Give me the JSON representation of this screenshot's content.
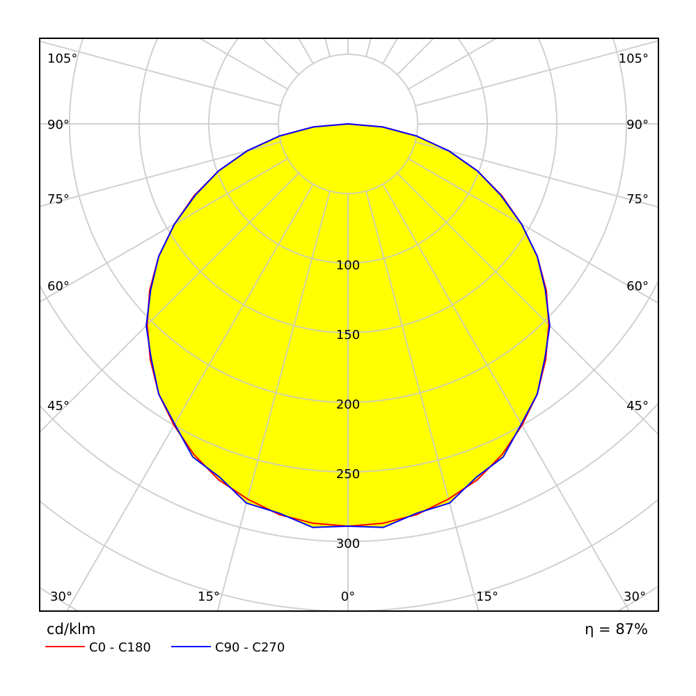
{
  "chart_data": {
    "type": "polar",
    "unit_label": "cd/klm",
    "efficiency_label": "η = 87%",
    "radial_ticks": [
      50,
      100,
      150,
      200,
      250,
      300,
      350,
      400
    ],
    "radial_tick_labels": [
      "100",
      "150",
      "200",
      "250",
      "300"
    ],
    "angle_step_deg": 15,
    "angle_labels_left": [
      "105°",
      "90°",
      "75°",
      "60°",
      "45°"
    ],
    "angle_labels_bottom": [
      "30°",
      "15°",
      "0°",
      "15°",
      "30°"
    ],
    "angle_labels_right": [
      "105°",
      "90°",
      "75°",
      "60°",
      "45°"
    ],
    "grid": true,
    "legend_position": "bottom-left",
    "fill_color": "#ffff00",
    "angles_deg": [
      0,
      5,
      10,
      15,
      20,
      25,
      30,
      35,
      40,
      45,
      50,
      55,
      60,
      65,
      70,
      75,
      80,
      85,
      90
    ],
    "series": [
      {
        "name": "C0 - C180",
        "color": "#ff0000",
        "values": [
          289,
          288,
          285,
          279,
          272,
          262,
          250,
          237,
          221,
          204,
          186,
          166,
          144,
          122,
          99,
          75,
          50,
          25,
          0
        ]
      },
      {
        "name": "C90 - C270",
        "color": "#0000ff",
        "values": [
          289,
          291,
          284,
          282,
          270,
          264,
          249,
          237,
          220,
          205,
          185,
          166,
          144,
          121,
          99,
          75,
          50,
          25,
          0
        ]
      }
    ]
  }
}
